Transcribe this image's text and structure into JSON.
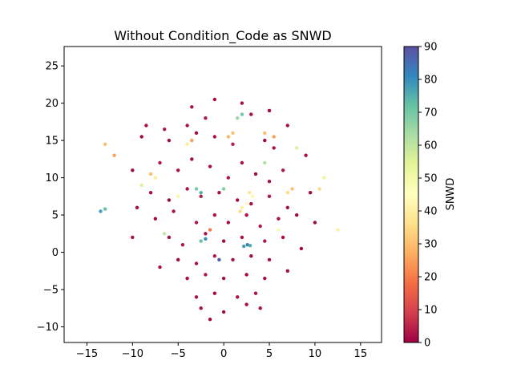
{
  "chart_data": {
    "type": "scatter",
    "title": "Without Condition_Code as SNWD",
    "xlabel": "",
    "ylabel": "",
    "xlim": [
      -17.5,
      17.3
    ],
    "ylim": [
      -12.1,
      27.6
    ],
    "x_ticks": [
      -15,
      -10,
      -5,
      0,
      5,
      10,
      15
    ],
    "x_tick_labels": [
      "−15",
      "−10",
      "−5",
      "0",
      "5",
      "10",
      "15"
    ],
    "y_ticks": [
      -10,
      -5,
      0,
      5,
      10,
      15,
      20,
      25
    ],
    "y_tick_labels": [
      "−10",
      "−5",
      "0",
      "5",
      "10",
      "15",
      "20",
      "25"
    ],
    "grid": false,
    "legend": "none",
    "colorbar": {
      "label": "SNWD",
      "range": [
        0,
        90
      ],
      "ticks": [
        0,
        10,
        20,
        30,
        40,
        50,
        60,
        70,
        80,
        90
      ],
      "tick_labels": [
        "0",
        "10",
        "20",
        "30",
        "40",
        "50",
        "60",
        "70",
        "80",
        "90"
      ],
      "colormap": "Spectral",
      "stops": [
        "#9e0142",
        "#d53e4f",
        "#f46d43",
        "#fdae61",
        "#fee08b",
        "#ffffbf",
        "#e6f598",
        "#abdda4",
        "#66c2a5",
        "#3288bd",
        "#5e4fa2"
      ]
    },
    "series": [
      {
        "points": [
          [
            -6.5,
            16.5,
            3
          ],
          [
            -6.0,
            15.0,
            2
          ],
          [
            -4.0,
            17.0,
            2
          ],
          [
            -3.0,
            16.0,
            1
          ],
          [
            -2.0,
            18.0,
            3
          ],
          [
            -1.0,
            15.5,
            2
          ],
          [
            1.0,
            14.5,
            4
          ],
          [
            3.0,
            18.5,
            2
          ],
          [
            4.5,
            15.0,
            1
          ],
          [
            5.5,
            14.0,
            2
          ],
          [
            -7.0,
            12.0,
            3
          ],
          [
            -5.0,
            11.0,
            2
          ],
          [
            -3.5,
            12.5,
            1
          ],
          [
            -1.5,
            11.5,
            2
          ],
          [
            0.5,
            10.0,
            3
          ],
          [
            2.0,
            12.0,
            2
          ],
          [
            3.5,
            10.5,
            1
          ],
          [
            5.0,
            9.5,
            2
          ],
          [
            6.5,
            11.0,
            3
          ],
          [
            -8.0,
            8.0,
            2
          ],
          [
            -6.0,
            7.0,
            1
          ],
          [
            -4.0,
            8.5,
            2
          ],
          [
            -2.5,
            7.5,
            4
          ],
          [
            -0.5,
            8.0,
            2
          ],
          [
            1.5,
            7.0,
            1
          ],
          [
            3.0,
            6.5,
            2
          ],
          [
            5.0,
            7.5,
            3
          ],
          [
            7.0,
            6.0,
            2
          ],
          [
            -7.5,
            4.5,
            1
          ],
          [
            -5.5,
            5.5,
            2
          ],
          [
            -3.0,
            4.0,
            3
          ],
          [
            -1.0,
            5.0,
            2
          ],
          [
            0.5,
            4.0,
            1
          ],
          [
            2.5,
            5.0,
            2
          ],
          [
            4.0,
            3.5,
            3
          ],
          [
            6.0,
            4.5,
            2
          ],
          [
            8.0,
            5.0,
            1
          ],
          [
            -6.0,
            2.0,
            2
          ],
          [
            -4.5,
            1.0,
            3
          ],
          [
            -2.0,
            2.5,
            2
          ],
          [
            0.0,
            1.5,
            1
          ],
          [
            2.0,
            2.0,
            2
          ],
          [
            4.5,
            1.5,
            3
          ],
          [
            6.5,
            2.0,
            2
          ],
          [
            -5.0,
            -1.0,
            1
          ],
          [
            -3.0,
            -1.5,
            2
          ],
          [
            -1.0,
            -0.5,
            3
          ],
          [
            1.0,
            -1.0,
            2
          ],
          [
            3.0,
            -0.5,
            1
          ],
          [
            5.0,
            -1.0,
            2
          ],
          [
            -4.0,
            -3.5,
            2
          ],
          [
            -2.0,
            -3.0,
            3
          ],
          [
            0.0,
            -3.5,
            2
          ],
          [
            2.5,
            -3.0,
            1
          ],
          [
            4.5,
            -3.5,
            2
          ],
          [
            -3.0,
            -6.0,
            2
          ],
          [
            -1.0,
            -5.5,
            1
          ],
          [
            1.5,
            -6.0,
            2
          ],
          [
            3.5,
            -5.5,
            3
          ],
          [
            -2.5,
            -7.5,
            2
          ],
          [
            0.0,
            -8.0,
            1
          ],
          [
            2.5,
            -7.0,
            2
          ],
          [
            4.0,
            -7.5,
            2
          ],
          [
            -1.5,
            -9.0,
            1
          ],
          [
            -3.5,
            19.5,
            2
          ],
          [
            -1.0,
            20.5,
            1
          ],
          [
            2.0,
            20.0,
            2
          ],
          [
            5.0,
            19.0,
            1
          ],
          [
            7.0,
            17.0,
            2
          ],
          [
            -9.0,
            15.5,
            1
          ],
          [
            -8.5,
            17.0,
            2
          ],
          [
            -10.0,
            11.0,
            1
          ],
          [
            -9.5,
            6.0,
            2
          ],
          [
            9.5,
            8.0,
            1
          ],
          [
            9.0,
            13.0,
            2
          ],
          [
            10.0,
            4.0,
            1
          ],
          [
            -10.0,
            2.0,
            2
          ],
          [
            8.5,
            0.5,
            1
          ],
          [
            -7.0,
            -2.0,
            2
          ],
          [
            7.0,
            -2.5,
            1
          ],
          [
            2.0,
            6.0,
            40
          ],
          [
            2.5,
            6.5,
            45
          ],
          [
            1.8,
            5.5,
            35
          ],
          [
            3.2,
            7.5,
            42
          ],
          [
            2.8,
            8.0,
            38
          ],
          [
            1.0,
            16.0,
            30
          ],
          [
            0.5,
            15.5,
            28
          ],
          [
            -1.5,
            3.0,
            20
          ],
          [
            -3.5,
            15.0,
            25
          ],
          [
            -4.0,
            14.5,
            40
          ],
          [
            4.5,
            16.0,
            30
          ],
          [
            5.5,
            15.5,
            25
          ],
          [
            7.0,
            8.0,
            35
          ],
          [
            7.5,
            8.5,
            30
          ],
          [
            -8.0,
            10.5,
            30
          ],
          [
            -7.5,
            10.0,
            40
          ],
          [
            10.5,
            8.5,
            35
          ],
          [
            -12.0,
            13.0,
            25
          ],
          [
            -13.0,
            14.5,
            30
          ],
          [
            12.5,
            3.0,
            40
          ],
          [
            2.2,
            0.8,
            78
          ],
          [
            2.6,
            1.0,
            82
          ],
          [
            2.9,
            0.9,
            75
          ],
          [
            -2.5,
            1.5,
            72
          ],
          [
            -2.0,
            1.8,
            80
          ],
          [
            -3.0,
            8.5,
            70
          ],
          [
            -2.5,
            8.0,
            75
          ],
          [
            -13.5,
            5.5,
            78
          ],
          [
            -13.0,
            5.8,
            72
          ],
          [
            1.5,
            18.0,
            65
          ],
          [
            2.0,
            18.5,
            70
          ],
          [
            -6.5,
            2.5,
            60
          ],
          [
            0.0,
            8.5,
            68
          ],
          [
            4.5,
            12.0,
            62
          ],
          [
            8.0,
            14.0,
            55
          ],
          [
            -5.0,
            7.5,
            50
          ],
          [
            6.0,
            3.0,
            48
          ],
          [
            -9.0,
            9.0,
            55
          ],
          [
            11.0,
            10.0,
            52
          ],
          [
            -0.5,
            -1.0,
            88
          ]
        ]
      }
    ]
  }
}
